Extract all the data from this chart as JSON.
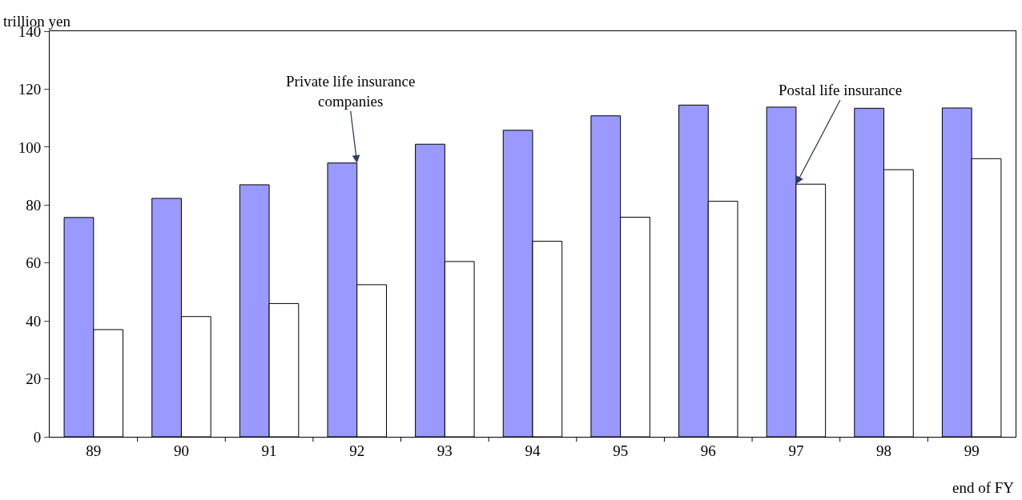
{
  "chart_data": {
    "type": "bar",
    "categories": [
      "89",
      "90",
      "91",
      "92",
      "93",
      "94",
      "95",
      "96",
      "97",
      "98",
      "99"
    ],
    "series": [
      {
        "color": "#9999ff",
        "values": [
          75.7,
          82.3,
          87,
          94.5,
          101,
          105.8,
          110.8,
          114.5,
          113.8,
          113.4,
          113.5
        ]
      },
      {
        "color": "#ffffff",
        "values": [
          37,
          41.5,
          46,
          52.5,
          60.5,
          67.5,
          75.8,
          81.3,
          87.2,
          92.2,
          96
        ]
      }
    ],
    "ylabel": "trillion yen",
    "xlabel": "end of FY",
    "ylim": [
      0,
      140
    ],
    "yticks": [
      0,
      20,
      40,
      60,
      80,
      100,
      120,
      140
    ],
    "legend": false,
    "annotations": [
      {
        "text": "Private life insurance companies",
        "x": "92",
        "y": 94.5
      },
      {
        "text": "Postal life insurance",
        "x": "97",
        "y": 87.2
      }
    ]
  }
}
